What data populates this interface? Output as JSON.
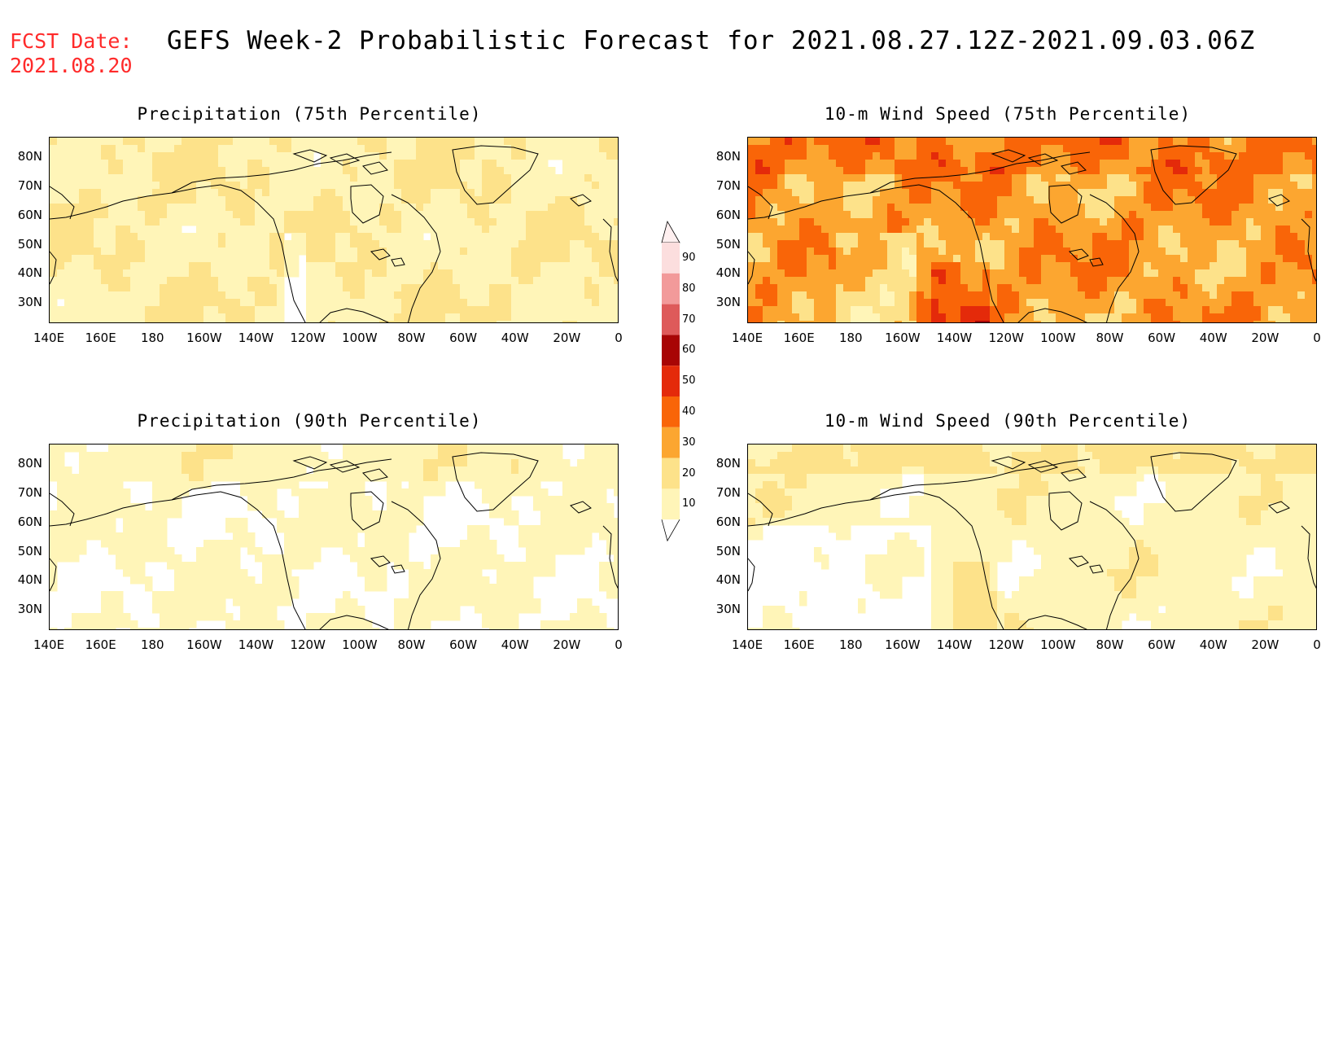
{
  "header": {
    "fcst_label": "FCST Date:",
    "fcst_date": "2021.08.20",
    "title": "GEFS Week-2 Probabilistic Forecast for 2021.08.27.12Z-2021.09.03.06Z"
  },
  "axes": {
    "lat_labels": [
      "80N",
      "70N",
      "60N",
      "50N",
      "40N",
      "30N"
    ],
    "lon_labels": [
      "140E",
      "160E",
      "180",
      "160W",
      "140W",
      "120W",
      "100W",
      "80W",
      "60W",
      "40W",
      "20W",
      "0"
    ]
  },
  "panels": [
    {
      "id": "precip75",
      "title": "Precipitation (75th Percentile)"
    },
    {
      "id": "wind75",
      "title": "10-m Wind Speed (75th Percentile)"
    },
    {
      "id": "precip90",
      "title": "Precipitation (90th Percentile)"
    },
    {
      "id": "wind90",
      "title": "10-m Wind Speed (90th Percentile)"
    }
  ],
  "colorbar": {
    "levels": [
      "10",
      "20",
      "30",
      "40",
      "50",
      "60",
      "70",
      "80",
      "90"
    ],
    "colors": [
      "#fff5b8",
      "#fde28a",
      "#fca630",
      "#f96508",
      "#e42a0a",
      "#a80505",
      "#de5a5a",
      "#f29a9a",
      "#fcdede"
    ]
  }
}
